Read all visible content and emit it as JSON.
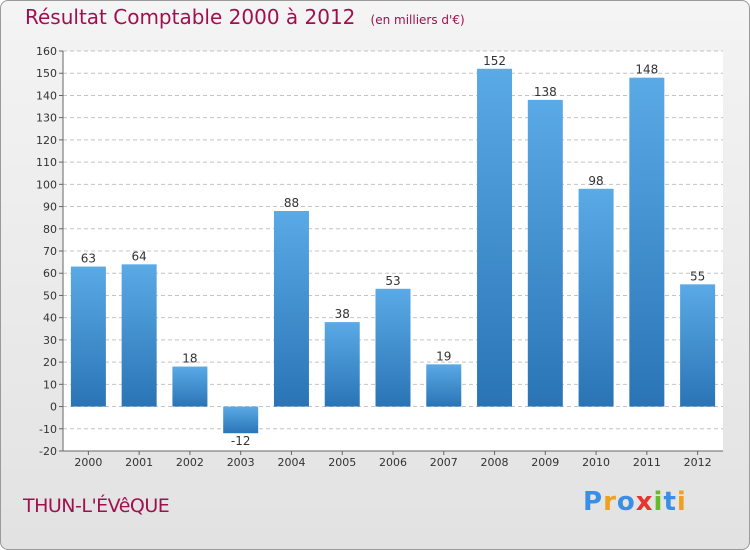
{
  "title": "Résultat Comptable 2000 à 2012",
  "subtitle": "(en milliers d'€)",
  "commune": "THUN-L'ÉVêQUE",
  "logo": {
    "letters": [
      "P",
      "r",
      "o",
      "x",
      "i",
      "t",
      "i"
    ],
    "colors": [
      "#3a8ee6",
      "#f0a020",
      "#3a8ee6",
      "#e8342e",
      "#66bb2a",
      "#3a8ee6",
      "#f0a020"
    ]
  },
  "colors": {
    "title": "#a01050",
    "bar_top": "#5aaae6",
    "bar_bottom": "#2a74b6",
    "grid": "#c4c4c4"
  },
  "chart_data": {
    "type": "bar",
    "title": "Résultat Comptable 2000 à 2012",
    "subtitle": "(en milliers d'€)",
    "xlabel": "",
    "ylabel": "",
    "categories": [
      "2000",
      "2001",
      "2002",
      "2003",
      "2004",
      "2005",
      "2006",
      "2007",
      "2008",
      "2009",
      "2010",
      "2011",
      "2012"
    ],
    "values": [
      63,
      64,
      18,
      -12,
      88,
      38,
      53,
      19,
      152,
      138,
      98,
      148,
      55
    ],
    "ylim": [
      -20,
      160
    ],
    "yticks": [
      -20,
      -10,
      0,
      10,
      20,
      30,
      40,
      50,
      60,
      70,
      80,
      90,
      100,
      110,
      120,
      130,
      140,
      150,
      160
    ],
    "grid": true
  }
}
